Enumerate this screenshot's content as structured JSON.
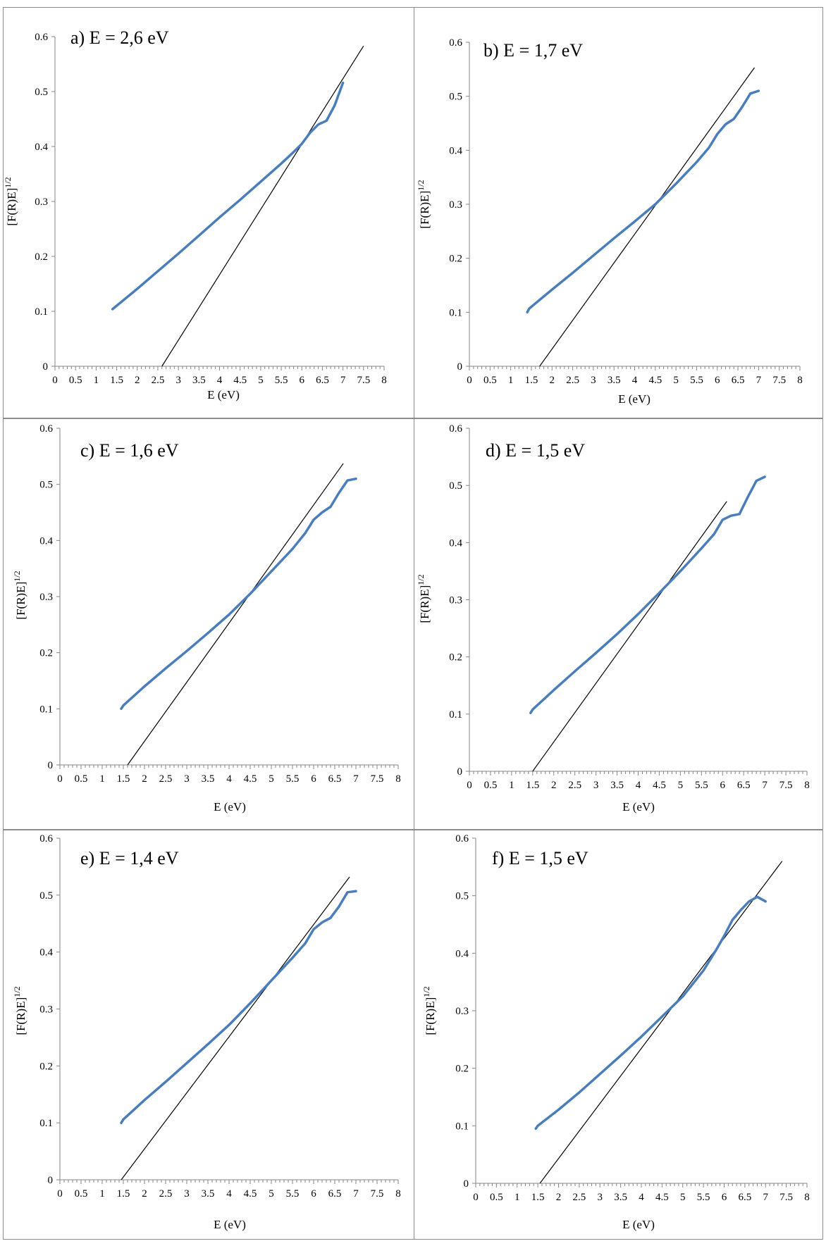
{
  "chart_data": [
    {
      "type": "line",
      "title": "a) E = 2,6 eV",
      "xlabel": "E (eV)",
      "ylabel": "[F(R)E]",
      "ylabel_sup": "1/2",
      "xlim": [
        0,
        8
      ],
      "ylim": [
        0,
        0.6
      ],
      "xticks": [
        "0",
        "0.5",
        "1",
        "1.5",
        "2",
        "2.5",
        "3",
        "3.5",
        "4",
        "4.5",
        "5",
        "5.5",
        "6",
        "6.5",
        "7",
        "7.5",
        "8"
      ],
      "yticks": [
        "0",
        "0.1",
        "0.2",
        "0.3",
        "0.4",
        "0.5",
        "0.6"
      ],
      "grid": false,
      "color": "#4a7ebb",
      "fit_color": "#000000",
      "series": [
        {
          "x": [
            1.4,
            2.0,
            2.5,
            3.0,
            3.5,
            4.0,
            4.5,
            5.0,
            5.5,
            5.8,
            6.0,
            6.2,
            6.4,
            6.6,
            6.8,
            7.0
          ],
          "y": [
            0.104,
            0.141,
            0.173,
            0.205,
            0.238,
            0.271,
            0.303,
            0.336,
            0.369,
            0.39,
            0.405,
            0.425,
            0.44,
            0.447,
            0.475,
            0.516
          ]
        }
      ],
      "fit_line": {
        "x": [
          2.6,
          7.5
        ],
        "y": [
          0.0,
          0.583
        ]
      }
    },
    {
      "type": "line",
      "title": "b) E = 1,7 eV",
      "xlabel": "E (eV)",
      "ylabel": "[F(R)E]",
      "ylabel_sup": "1/2",
      "xlim": [
        0,
        8
      ],
      "ylim": [
        0,
        0.6
      ],
      "xticks": [
        "0",
        "0.5",
        "1",
        "1.5",
        "2",
        "2.5",
        "3",
        "3.5",
        "4",
        "4.5",
        "5",
        "5.5",
        "6",
        "6.5",
        "7",
        "7.5",
        "8"
      ],
      "yticks": [
        "0",
        "0.1",
        "0.2",
        "0.3",
        "0.4",
        "0.5",
        "0.6"
      ],
      "grid": false,
      "color": "#4a7ebb",
      "fit_color": "#000000",
      "series": [
        {
          "x": [
            1.4,
            1.45,
            2.0,
            2.5,
            3.0,
            3.5,
            4.0,
            4.5,
            5.0,
            5.5,
            5.8,
            6.0,
            6.2,
            6.4,
            6.6,
            6.8,
            7.0
          ],
          "y": [
            0.1,
            0.107,
            0.142,
            0.173,
            0.205,
            0.237,
            0.268,
            0.3,
            0.338,
            0.378,
            0.405,
            0.43,
            0.448,
            0.458,
            0.48,
            0.505,
            0.51
          ]
        }
      ],
      "fit_line": {
        "x": [
          1.7,
          6.9
        ],
        "y": [
          0.0,
          0.553
        ]
      }
    },
    {
      "type": "line",
      "title": "c) E = 1,6 eV",
      "xlabel": "E (eV)",
      "ylabel": "[F(R)E]",
      "ylabel_sup": "1/2",
      "xlim": [
        0,
        8
      ],
      "ylim": [
        0,
        0.6
      ],
      "xticks": [
        "0",
        "0.5",
        "1",
        "1.5",
        "2",
        "2.5",
        "3",
        "3.5",
        "4",
        "4.5",
        "5",
        "5.5",
        "6",
        "6.5",
        "7",
        "7.5",
        "8"
      ],
      "yticks": [
        "0",
        "0.1",
        "0.2",
        "0.3",
        "0.4",
        "0.5",
        "0.6"
      ],
      "grid": false,
      "color": "#4a7ebb",
      "fit_color": "#000000",
      "series": [
        {
          "x": [
            1.45,
            1.5,
            2.0,
            2.5,
            3.0,
            3.5,
            4.0,
            4.5,
            5.0,
            5.5,
            5.8,
            6.0,
            6.2,
            6.4,
            6.6,
            6.8,
            7.0
          ],
          "y": [
            0.1,
            0.106,
            0.14,
            0.172,
            0.203,
            0.235,
            0.268,
            0.305,
            0.345,
            0.385,
            0.413,
            0.437,
            0.45,
            0.46,
            0.485,
            0.507,
            0.51
          ]
        }
      ],
      "fit_line": {
        "x": [
          1.6,
          6.7
        ],
        "y": [
          0.0,
          0.537
        ]
      }
    },
    {
      "type": "line",
      "title": "d) E = 1,5 eV",
      "xlabel": "E (eV)",
      "ylabel": "[F(R)E]",
      "ylabel_sup": "1/2",
      "xlim": [
        0,
        8
      ],
      "ylim": [
        0,
        0.6
      ],
      "xticks": [
        "0",
        "0.5",
        "1",
        "1.5",
        "2",
        "2.5",
        "3",
        "3.5",
        "4",
        "4.5",
        "5",
        "5.5",
        "6",
        "6.5",
        "7",
        "7.5",
        "8"
      ],
      "yticks": [
        "0",
        "0.1",
        "0.2",
        "0.3",
        "0.4",
        "0.5",
        "0.6"
      ],
      "grid": false,
      "color": "#4a7ebb",
      "fit_color": "#000000",
      "series": [
        {
          "x": [
            1.45,
            1.5,
            2.0,
            2.5,
            3.0,
            3.5,
            4.0,
            4.5,
            5.0,
            5.5,
            5.8,
            6.0,
            6.2,
            6.4,
            6.6,
            6.8,
            7.0
          ],
          "y": [
            0.102,
            0.108,
            0.142,
            0.175,
            0.207,
            0.24,
            0.275,
            0.312,
            0.35,
            0.39,
            0.415,
            0.44,
            0.447,
            0.45,
            0.48,
            0.508,
            0.515
          ]
        }
      ],
      "fit_line": {
        "x": [
          1.5,
          6.1
        ],
        "y": [
          0.0,
          0.472
        ]
      }
    },
    {
      "type": "line",
      "title": "e) E = 1,4 eV",
      "xlabel": "E (eV)",
      "ylabel": "[F(R)E]",
      "ylabel_sup": "1/2",
      "xlim": [
        0,
        8
      ],
      "ylim": [
        0,
        0.6
      ],
      "xticks": [
        "0",
        "0.5",
        "1",
        "1.5",
        "2",
        "2.5",
        "3",
        "3.5",
        "4",
        "4.5",
        "5",
        "5.5",
        "6",
        "6.5",
        "7",
        "7.5",
        "8"
      ],
      "yticks": [
        "0",
        "0.1",
        "0.2",
        "0.3",
        "0.4",
        "0.5",
        "0.6"
      ],
      "grid": false,
      "color": "#4a7ebb",
      "fit_color": "#000000",
      "series": [
        {
          "x": [
            1.45,
            1.5,
            2.0,
            2.5,
            3.0,
            3.5,
            4.0,
            4.5,
            5.0,
            5.5,
            5.8,
            6.0,
            6.2,
            6.4,
            6.6,
            6.8,
            7.0
          ],
          "y": [
            0.1,
            0.106,
            0.14,
            0.172,
            0.205,
            0.238,
            0.272,
            0.31,
            0.35,
            0.39,
            0.415,
            0.44,
            0.452,
            0.46,
            0.48,
            0.505,
            0.507
          ]
        }
      ],
      "fit_line": {
        "x": [
          1.45,
          6.85
        ],
        "y": [
          0.0,
          0.532
        ]
      }
    },
    {
      "type": "line",
      "title": "f) E = 1,5 eV",
      "xlabel": "E (eV)",
      "ylabel": "[F(R)E]",
      "ylabel_sup": "1/2",
      "xlim": [
        0,
        8
      ],
      "ylim": [
        0,
        0.6
      ],
      "xticks": [
        "0",
        "0.5",
        "1",
        "1.5",
        "2",
        "2.5",
        "3",
        "3.5",
        "4",
        "4.5",
        "5",
        "5.5",
        "6",
        "6.5",
        "7",
        "7.5",
        "8"
      ],
      "yticks": [
        "0",
        "0.1",
        "0.2",
        "0.3",
        "0.4",
        "0.5",
        "0.6"
      ],
      "grid": false,
      "color": "#4a7ebb",
      "fit_color": "#000000",
      "series": [
        {
          "x": [
            1.45,
            1.5,
            2.0,
            2.5,
            3.0,
            3.5,
            4.0,
            4.5,
            5.0,
            5.5,
            5.8,
            6.0,
            6.2,
            6.4,
            6.6,
            6.8,
            7.0
          ],
          "y": [
            0.095,
            0.1,
            0.128,
            0.158,
            0.19,
            0.222,
            0.255,
            0.29,
            0.325,
            0.37,
            0.405,
            0.43,
            0.458,
            0.475,
            0.49,
            0.498,
            0.49
          ]
        }
      ],
      "fit_line": {
        "x": [
          1.55,
          7.4
        ],
        "y": [
          0.0,
          0.56
        ]
      }
    }
  ]
}
